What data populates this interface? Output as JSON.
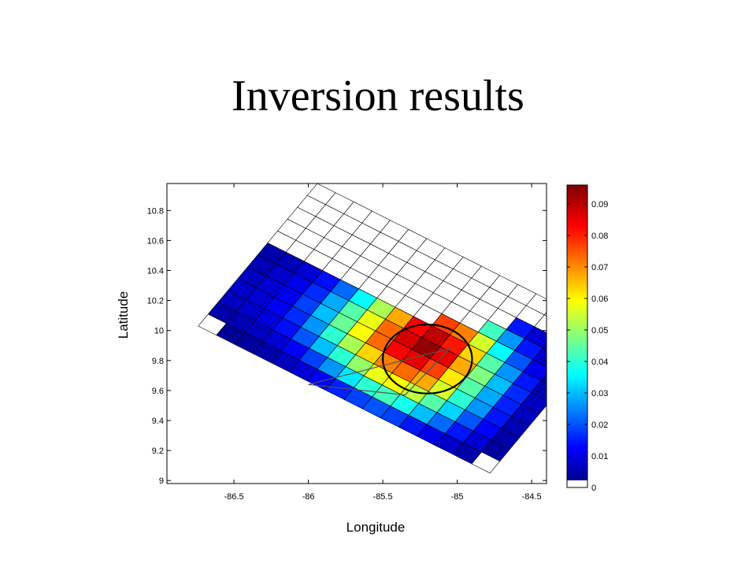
{
  "slide": {
    "title": "Inversion results"
  },
  "chart_data": {
    "type": "heatmap",
    "xlabel": "Longitude",
    "ylabel": "Latitude",
    "xlim": [
      -86.95,
      -84.4
    ],
    "ylim": [
      8.98,
      10.98
    ],
    "xticks": [
      -86.5,
      -86,
      -85.5,
      -85,
      -84.5
    ],
    "xtick_labels": [
      "-86.5",
      "-86",
      "-85.5",
      "-85",
      "-84.5"
    ],
    "yticks": [
      9,
      9.2,
      9.4,
      9.6,
      9.8,
      10,
      10.2,
      10.4,
      10.6,
      10.8
    ],
    "ytick_labels": [
      "9",
      "9.2",
      "9.4",
      "9.6",
      "9.8",
      "10",
      "10.2",
      "10.4",
      "10.6",
      "10.8"
    ],
    "colorbar": {
      "min": 0,
      "max": 0.096,
      "ticks": [
        0,
        0.01,
        0.02,
        0.03,
        0.04,
        0.05,
        0.06,
        0.07,
        0.08,
        0.09
      ],
      "tick_labels": [
        "0",
        "0.01",
        "0.02",
        "0.03",
        "0.04",
        "0.05",
        "0.06",
        "0.07",
        "0.08",
        "0.09"
      ],
      "colormap": "jet",
      "zero_color": "#ffffff"
    },
    "grid": {
      "origin_corner": [
        -86.74,
        10.03
      ],
      "along_strike_corner": [
        -84.78,
        9.05
      ],
      "down_dip_corner": [
        -85.94,
        10.98
      ],
      "along_strike_cells": 16,
      "down_dip_cells": 12,
      "values_row_order": "row 0 = trench side (southwest edge), increasing down-dip toward northeast",
      "values": [
        [
          0.0,
          0.002,
          0.003,
          0.004,
          0.006,
          0.008,
          0.012,
          0.015,
          0.018,
          0.02,
          0.018,
          0.014,
          0.01,
          0.007,
          0.004,
          0.0
        ],
        [
          0.004,
          0.005,
          0.006,
          0.008,
          0.012,
          0.018,
          0.026,
          0.034,
          0.04,
          0.042,
          0.038,
          0.03,
          0.022,
          0.014,
          0.008,
          0.003
        ],
        [
          0.006,
          0.007,
          0.009,
          0.013,
          0.02,
          0.03,
          0.04,
          0.05,
          0.058,
          0.06,
          0.054,
          0.044,
          0.032,
          0.02,
          0.012,
          0.004
        ],
        [
          0.007,
          0.008,
          0.011,
          0.016,
          0.026,
          0.04,
          0.052,
          0.064,
          0.072,
          0.074,
          0.068,
          0.056,
          0.04,
          0.026,
          0.014,
          0.005
        ],
        [
          0.006,
          0.008,
          0.011,
          0.018,
          0.03,
          0.046,
          0.06,
          0.074,
          0.084,
          0.086,
          0.078,
          0.062,
          0.044,
          0.028,
          0.015,
          0.006
        ],
        [
          0.005,
          0.007,
          0.01,
          0.016,
          0.028,
          0.044,
          0.058,
          0.074,
          0.088,
          0.094,
          0.086,
          0.068,
          0.048,
          0.03,
          0.016,
          0.006
        ],
        [
          0.004,
          0.005,
          0.008,
          0.013,
          0.022,
          0.036,
          0.052,
          0.068,
          0.084,
          0.09,
          0.082,
          0.064,
          0.044,
          0.026,
          0.014,
          0.005
        ],
        [
          0.0,
          0.0,
          0.0,
          0.0,
          0.0,
          0.0,
          0.0,
          0.0,
          0.0,
          0.078,
          0.072,
          0.056,
          0.036,
          0.02,
          0.01,
          0.004
        ],
        [
          0.0,
          0.0,
          0.0,
          0.0,
          0.0,
          0.0,
          0.0,
          0.0,
          0.0,
          0.0,
          0.0,
          0.042,
          0.026,
          0.014,
          0.007,
          0.003
        ],
        [
          0.0,
          0.0,
          0.0,
          0.0,
          0.0,
          0.0,
          0.0,
          0.0,
          0.0,
          0.0,
          0.0,
          0.0,
          0.014,
          0.008,
          0.004,
          0.002
        ],
        [
          0.0,
          0.0,
          0.0,
          0.0,
          0.0,
          0.0,
          0.0,
          0.0,
          0.0,
          0.0,
          0.0,
          0.0,
          0.0,
          0.0,
          0.0,
          0.0
        ],
        [
          0.0,
          0.0,
          0.0,
          0.0,
          0.0,
          0.0,
          0.0,
          0.0,
          0.0,
          0.0,
          0.0,
          0.0,
          0.0,
          0.0,
          0.0,
          0.0
        ]
      ]
    },
    "annotations": [
      {
        "type": "ellipse",
        "center": [
          -85.2,
          9.81
        ],
        "radius_lon": 0.3,
        "radius_lat": 0.23,
        "color": "#000000"
      },
      {
        "type": "triangle",
        "vertices": [
          [
            -86.0,
            9.64
          ],
          [
            -85.05,
            9.88
          ],
          [
            -85.35,
            9.57
          ]
        ],
        "color": "#555555"
      }
    ]
  }
}
